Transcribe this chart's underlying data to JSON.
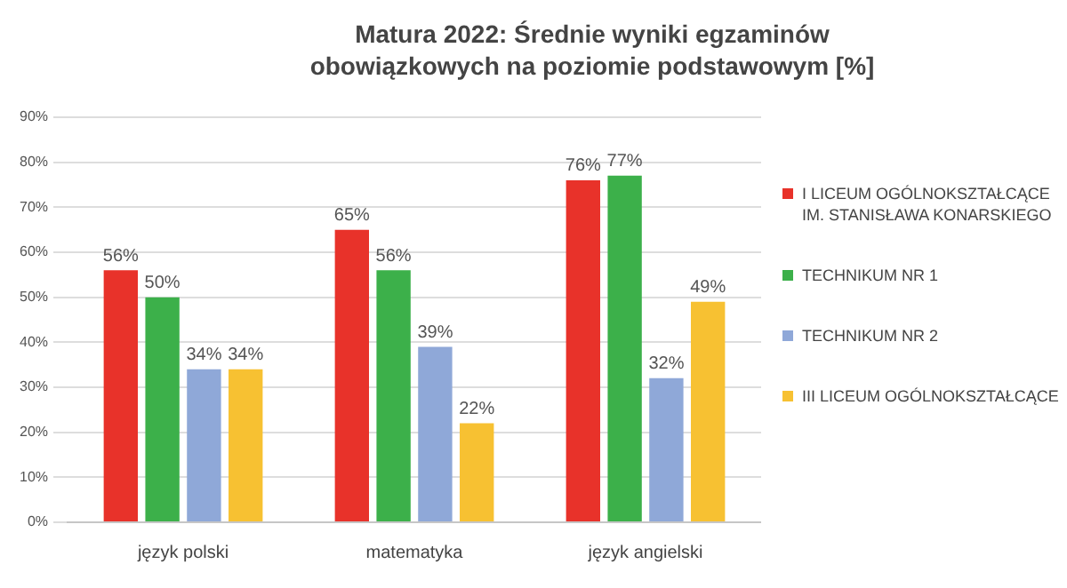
{
  "chart_data": {
    "type": "bar",
    "title": "Matura 2022: Średnie wyniki egzaminów obowiązkowych na poziomie podstawowym [%]",
    "categories": [
      "język polski",
      "matematyka",
      "język angielski"
    ],
    "series": [
      {
        "name": "I LICEUM OGÓLNOKSZTAŁCĄCE IM. STANISŁAWA KONARSKIEGO",
        "color": "#e8322a",
        "values": [
          56,
          65,
          76
        ],
        "value_labels": [
          "56%",
          "65%",
          "76%"
        ]
      },
      {
        "name": "TECHNIKUM NR 1",
        "color": "#3cb04a",
        "values": [
          50,
          56,
          77
        ],
        "value_labels": [
          "50%",
          "56%",
          "77%"
        ]
      },
      {
        "name": "TECHNIKUM NR 2",
        "color": "#8fa8d8",
        "values": [
          34,
          39,
          32
        ],
        "value_labels": [
          "34%",
          "39%",
          "32%"
        ]
      },
      {
        "name": "III LICEUM OGÓLNOKSZTAŁCĄCE",
        "color": "#f7c132",
        "values": [
          34,
          22,
          49
        ],
        "value_labels": [
          "34%",
          "22%",
          "49%"
        ]
      }
    ],
    "ylim": [
      0,
      90
    ],
    "yticks": [
      {
        "value": 0,
        "label": "0%"
      },
      {
        "value": 10,
        "label": "10%"
      },
      {
        "value": 20,
        "label": "20%"
      },
      {
        "value": 30,
        "label": "30%"
      },
      {
        "value": 40,
        "label": "40%"
      },
      {
        "value": 50,
        "label": "50%"
      },
      {
        "value": 60,
        "label": "60%"
      },
      {
        "value": 70,
        "label": "70%"
      },
      {
        "value": 80,
        "label": "80%"
      },
      {
        "value": 90,
        "label": "90%"
      }
    ],
    "grid": "y",
    "legend": "right"
  }
}
